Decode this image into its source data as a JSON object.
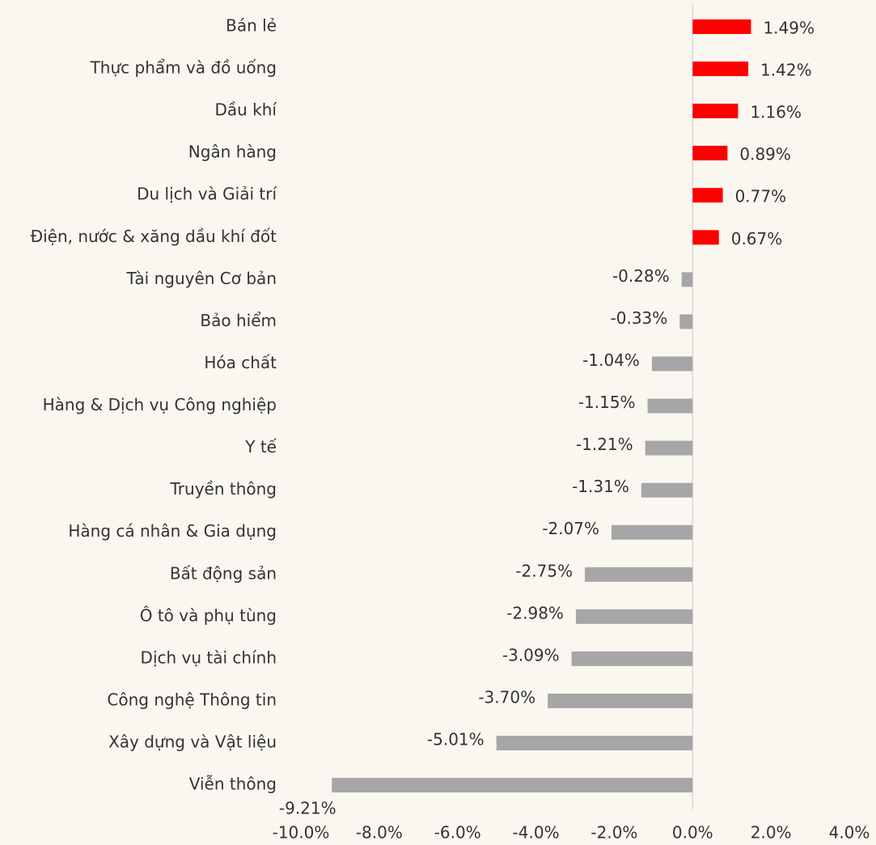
{
  "chart_data": {
    "type": "bar",
    "orientation": "horizontal",
    "categories": [
      "Bán lẻ",
      "Thực phẩm và đồ uống",
      "Dầu khí",
      "Ngân hàng",
      "Du lịch và Giải trí",
      "Điện, nước & xăng dầu khí đốt",
      "Tài nguyên Cơ bản",
      "Bảo hiểm",
      "Hóa chất",
      "Hàng & Dịch vụ Công nghiệp",
      "Y tế",
      "Truyền thông",
      "Hàng cá nhân & Gia dụng",
      "Bất động sản",
      "Ô tô và phụ tùng",
      "Dịch vụ tài chính",
      "Công nghệ Thông tin",
      "Xây dựng và Vật liệu",
      "Viễn thông"
    ],
    "values": [
      1.49,
      1.42,
      1.16,
      0.89,
      0.77,
      0.67,
      -0.28,
      -0.33,
      -1.04,
      -1.15,
      -1.21,
      -1.31,
      -2.07,
      -2.75,
      -2.98,
      -3.09,
      -3.7,
      -5.01,
      -9.21
    ],
    "value_labels": [
      "1.49%",
      "1.42%",
      "1.16%",
      "0.89%",
      "0.77%",
      "0.67%",
      "-0.28%",
      "-0.33%",
      "-1.04%",
      "-1.15%",
      "-1.21%",
      "-1.31%",
      "-2.07%",
      "-2.75%",
      "-2.98%",
      "-3.09%",
      "-3.70%",
      "-5.01%",
      "-9.21%"
    ],
    "color_positive": "#ff0000",
    "color_negative": "#a6a6a6",
    "xlim": [
      -10,
      4
    ],
    "xticks": [
      {
        "value": -10,
        "label": "-10.0%"
      },
      {
        "value": -8,
        "label": "-8.0%"
      },
      {
        "value": -6,
        "label": "-6.0%"
      },
      {
        "value": -4,
        "label": "-4.0%"
      },
      {
        "value": -2,
        "label": "-2.0%"
      },
      {
        "value": 0,
        "label": "0.0%"
      },
      {
        "value": 2,
        "label": "2.0%"
      },
      {
        "value": 4,
        "label": "4.0%"
      }
    ],
    "grid": false
  }
}
